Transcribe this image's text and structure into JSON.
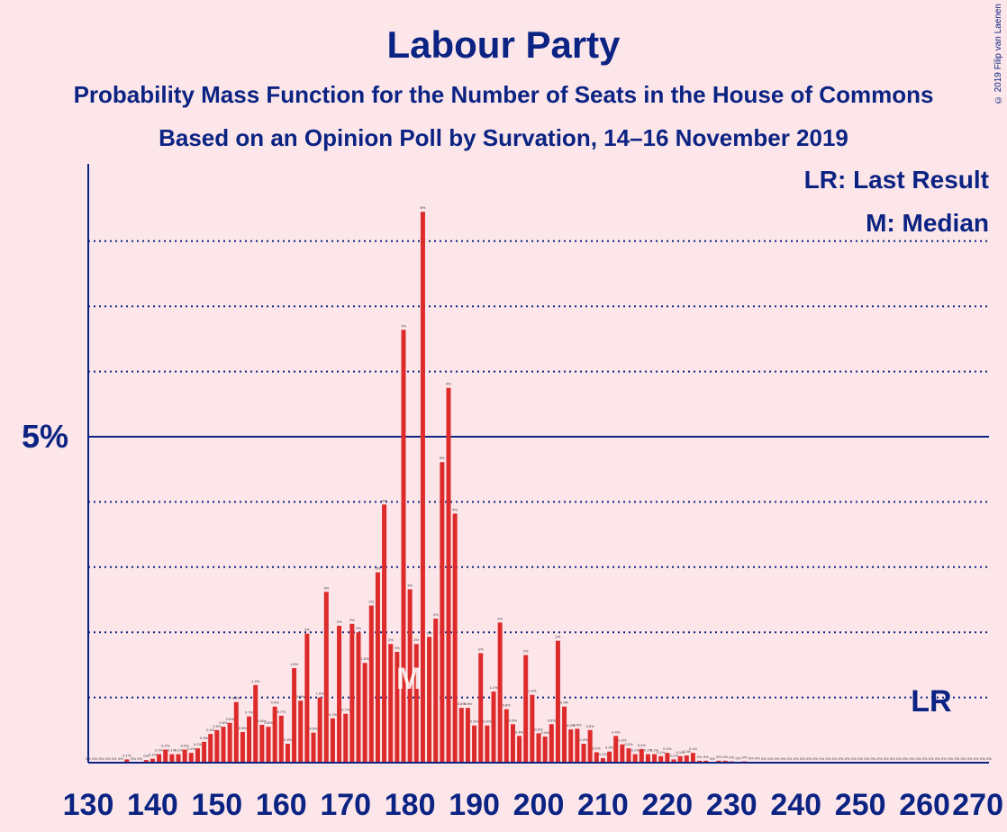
{
  "title": "Labour Party",
  "subtitle": "Probability Mass Function for the Number of Seats in the House of Commons",
  "subtitle2": "Based on an Opinion Poll by Survation, 14–16 November 2019",
  "copyright": "© 2019 Filip van Laenen",
  "legend": {
    "lr": "LR: Last Result",
    "m": "M: Median"
  },
  "colors": {
    "bar": "#dd2a2a",
    "axis": "#0b2382",
    "background": "#fde6ea"
  },
  "chart_data": {
    "type": "bar",
    "x_start": 130,
    "x_end": 270,
    "xticks": [
      130,
      140,
      150,
      160,
      170,
      180,
      190,
      200,
      210,
      220,
      230,
      240,
      250,
      260,
      270
    ],
    "ytick_label": "5%",
    "ytick_value": 5,
    "ylim": [
      0,
      9.2
    ],
    "gridlines": [
      1,
      2,
      3,
      4,
      6,
      7,
      8
    ],
    "median": 180,
    "median_label": "M",
    "last_result": 262,
    "last_result_label": "LR",
    "values": [
      0,
      0,
      0,
      0,
      0,
      0,
      0.05,
      0,
      0,
      0.04,
      0.06,
      0.13,
      0.2,
      0.13,
      0.13,
      0.2,
      0.15,
      0.22,
      0.32,
      0.44,
      0.5,
      0.55,
      0.61,
      0.93,
      0.47,
      0.71,
      1.19,
      0.58,
      0.55,
      0.86,
      0.72,
      0.29,
      1.45,
      0.95,
      1.98,
      0.46,
      1.0,
      2.62,
      0.68,
      2.1,
      0.75,
      2.13,
      2.0,
      1.53,
      2.41,
      2.92,
      3.96,
      1.82,
      1.7,
      6.64,
      2.66,
      1.82,
      8.45,
      1.93,
      2.21,
      4.61,
      5.75,
      3.82,
      0.84,
      0.84,
      0.57,
      1.68,
      0.57,
      1.09,
      2.15,
      0.82,
      0.59,
      0.41,
      1.65,
      1.04,
      0.45,
      0.4,
      0.59,
      1.87,
      0.86,
      0.51,
      0.52,
      0.29,
      0.5,
      0.16,
      0.07,
      0.17,
      0.41,
      0.28,
      0.22,
      0.13,
      0.21,
      0.13,
      0.13,
      0.1,
      0.15,
      0.05,
      0.1,
      0.11,
      0.15,
      0.03,
      0.03,
      0,
      0.03,
      0.03,
      0.02,
      0.01,
      0.02,
      0.01,
      0.01,
      0,
      0,
      0,
      0,
      0,
      0,
      0,
      0,
      0,
      0,
      0,
      0,
      0,
      0,
      0,
      0,
      0,
      0,
      0,
      0,
      0,
      0,
      0,
      0,
      0,
      0,
      0,
      0,
      0,
      0,
      0,
      0,
      0,
      0,
      0,
      0
    ],
    "bar_labels": [
      "0%",
      "0%",
      "0%",
      "0%",
      "0%",
      "0%",
      "0.1%",
      "0%",
      "0%",
      "0%",
      "0.1%",
      "0.1%",
      "0.2%",
      "0.1%",
      "0.1%",
      "0.2%",
      "0.1%",
      "0.2%",
      "0.3%",
      "0.4%",
      "0.5%",
      "0.5%",
      "0.6%",
      "0.9%",
      "0.5%",
      "0.7%",
      "1.2%",
      "0.6%",
      "0.6%",
      "0.9%",
      "0.7%",
      "0.3%",
      "1.5%",
      "0.9%",
      "2%",
      "0.5%",
      "1.0%",
      "3%",
      "0.7%",
      "2%",
      "0.7%",
      "2%",
      "2%",
      "1.5%",
      "2%",
      "3%",
      "4%",
      "2%",
      "2%",
      "7%",
      "3%",
      "2%",
      "8%",
      "2%",
      "2%",
      "5%",
      "6%",
      "4%",
      "0.8%",
      "0.8%",
      "0.6%",
      "2%",
      "0.6%",
      "1.1%",
      "2%",
      "0.8%",
      "0.6%",
      "0.4%",
      "2%",
      "1.0%",
      "0.5%",
      "0.4%",
      "0.6%",
      "2%",
      "0.9%",
      "0.5%",
      "0.5%",
      "0.3%",
      "0.5%",
      "0.2%",
      "0.1%",
      "0.2%",
      "0.4%",
      "0.3%",
      "0.2%",
      "0.1%",
      "0.2%",
      "0.1%",
      "0.1%",
      "0.1%",
      "0.2%",
      "0.1%",
      "0.1%",
      "0.1%",
      "0.1%",
      "0%",
      "0%",
      "0%",
      "0%",
      "0%",
      "0%",
      "0%",
      "0%",
      "0%",
      "0%",
      "0%",
      "0%",
      "0%",
      "0%",
      "0%",
      "0%",
      "0%",
      "0%",
      "0%",
      "0%",
      "0%",
      "0%",
      "0%",
      "0%",
      "0%",
      "0%",
      "0%",
      "0%",
      "0%",
      "0%",
      "0%",
      "0%",
      "0%",
      "0%",
      "0%",
      "0%",
      "0%",
      "0%",
      "0%",
      "0%",
      "0%",
      "0%",
      "0%",
      "0%",
      "0%",
      "0%"
    ]
  }
}
